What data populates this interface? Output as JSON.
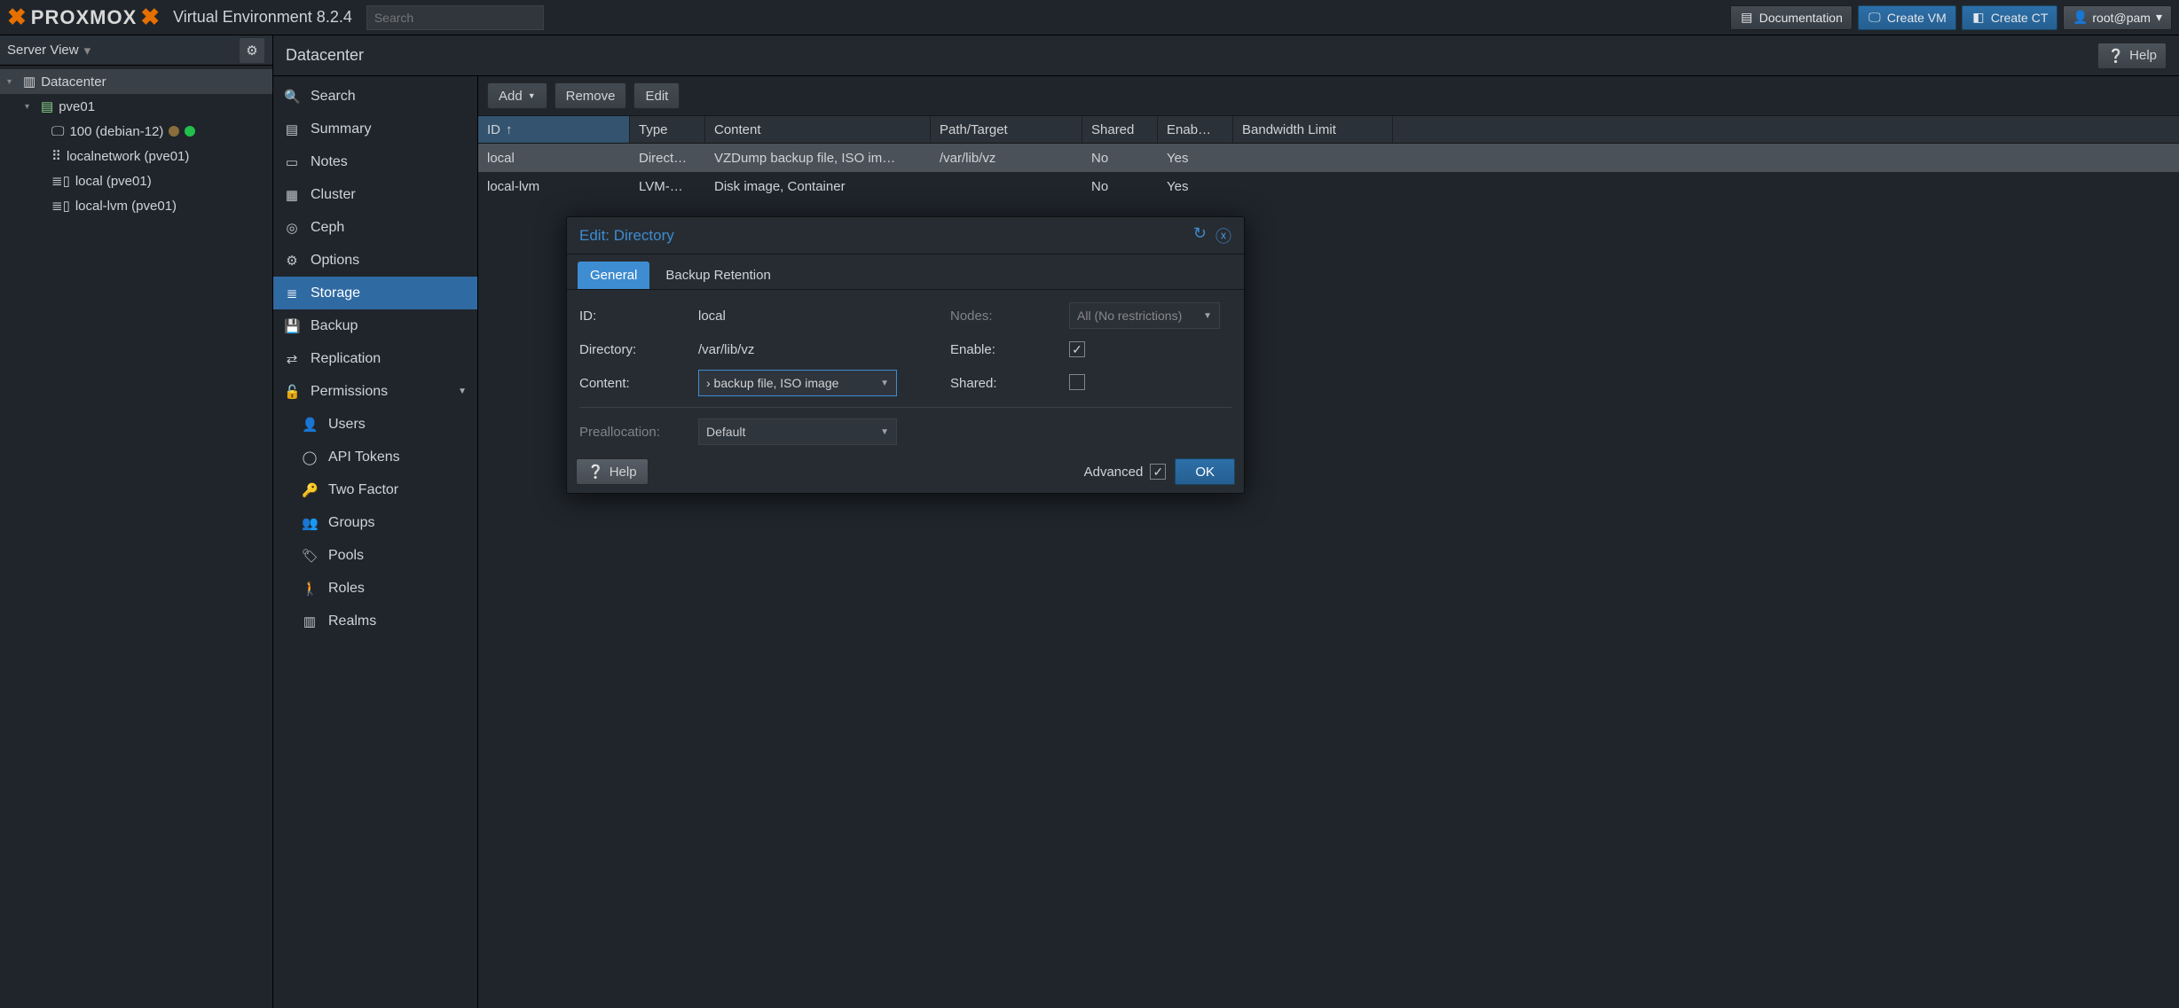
{
  "topbar": {
    "product": "PROXMOX",
    "env": "Virtual Environment 8.2.4",
    "search_placeholder": "Search",
    "doc_label": "Documentation",
    "create_vm_label": "Create VM",
    "create_ct_label": "Create CT",
    "user_label": "root@pam"
  },
  "sidebar": {
    "view_label": "Server View",
    "nodes": {
      "datacenter": "Datacenter",
      "host": "pve01",
      "vm": "100 (debian-12)",
      "net": "localnetwork (pve01)",
      "stor1": "local (pve01)",
      "stor2": "local-lvm (pve01)"
    }
  },
  "dc": {
    "title": "Datacenter",
    "help_label": "Help"
  },
  "midnav": {
    "search": "Search",
    "summary": "Summary",
    "notes": "Notes",
    "cluster": "Cluster",
    "ceph": "Ceph",
    "options": "Options",
    "storage": "Storage",
    "backup": "Backup",
    "replication": "Replication",
    "permissions": "Permissions",
    "users": "Users",
    "apitokens": "API Tokens",
    "twofactor": "Two Factor",
    "groups": "Groups",
    "pools": "Pools",
    "roles": "Roles",
    "realms": "Realms"
  },
  "toolbar": {
    "add": "Add",
    "remove": "Remove",
    "edit": "Edit"
  },
  "columns": {
    "id": "ID",
    "type": "Type",
    "content": "Content",
    "path": "Path/Target",
    "shared": "Shared",
    "enabled": "Enab…",
    "bw": "Bandwidth Limit"
  },
  "rows": [
    {
      "id": "local",
      "type": "Direct…",
      "content": "VZDump backup file, ISO im…",
      "path": "/var/lib/vz",
      "shared": "No",
      "enabled": "Yes",
      "bw": ""
    },
    {
      "id": "local-lvm",
      "type": "LVM-…",
      "content": "Disk image, Container",
      "path": "",
      "shared": "No",
      "enabled": "Yes",
      "bw": ""
    }
  ],
  "modal": {
    "title": "Edit: Directory",
    "tabs": {
      "general": "General",
      "retention": "Backup Retention"
    },
    "labels": {
      "id": "ID:",
      "dir": "Directory:",
      "content": "Content:",
      "nodes": "Nodes:",
      "enable": "Enable:",
      "shared": "Shared:",
      "prealloc": "Preallocation:",
      "advanced": "Advanced"
    },
    "values": {
      "id": "local",
      "dir": "/var/lib/vz",
      "content": "› backup file, ISO image",
      "nodes": "All (No restrictions)",
      "prealloc": "Default"
    },
    "help_label": "Help",
    "ok_label": "OK"
  }
}
